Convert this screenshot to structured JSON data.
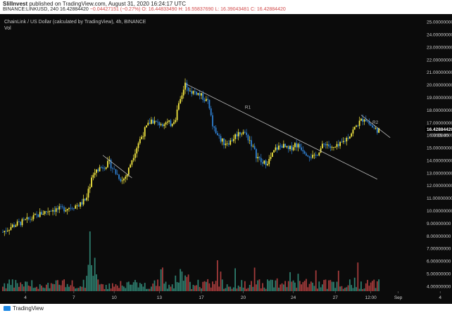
{
  "header": {
    "author": "SlilInvest",
    "published": " published on TradingView.com, August 31, 2020 16:24:17 UTC",
    "symbol_line": "BINANCE:LINKUSD, 240",
    "last": "16.42884420",
    "change": "−0.04427151 (−0.27%)",
    "open": "O: 16.44833490",
    "high": "H: 16.55837690",
    "low": "L: 16.39043481",
    "close": "C: 16.42884420"
  },
  "chart_data": {
    "type": "candlestick",
    "title": "ChainLink / US Dollar (calculated by TradingView), 4h, BINANCE",
    "subtitle": "Vol",
    "x_ticks": [
      "4",
      "7",
      "10",
      "13",
      "17",
      "20",
      "24",
      "27",
      "12:00",
      "Sep",
      "4"
    ],
    "y_ticks": [
      "4.00000000",
      "5.00000000",
      "6.00000000",
      "7.00000000",
      "8.00000000",
      "9.00000000",
      "10.00000000",
      "11.00000000",
      "12.00000000",
      "13.00000000",
      "14.00000000",
      "15.00000000",
      "16.00000000",
      "17.00000000",
      "18.00000000",
      "19.00000000",
      "20.00000000",
      "21.00000000",
      "22.00000000",
      "23.00000000",
      "24.00000000",
      "25.00000000"
    ],
    "ylim": [
      3.6,
      25.4
    ],
    "last_price_label": "16.42884420",
    "countdown_label": "03:35:45",
    "close_path": [
      {
        "t": 0,
        "v": 8.3
      },
      {
        "t": 6,
        "v": 8.8
      },
      {
        "t": 12,
        "v": 9.1
      },
      {
        "t": 18,
        "v": 9.4
      },
      {
        "t": 24,
        "v": 9.8
      },
      {
        "t": 30,
        "v": 10.1
      },
      {
        "t": 36,
        "v": 10.1
      },
      {
        "t": 42,
        "v": 10.3
      },
      {
        "t": 48,
        "v": 10.5
      },
      {
        "t": 52,
        "v": 11.0
      },
      {
        "t": 55,
        "v": 12.6
      },
      {
        "t": 58,
        "v": 13.3
      },
      {
        "t": 62,
        "v": 13.5
      },
      {
        "t": 66,
        "v": 13.8
      },
      {
        "t": 70,
        "v": 13.0
      },
      {
        "t": 74,
        "v": 12.4
      },
      {
        "t": 77,
        "v": 12.9
      },
      {
        "t": 80,
        "v": 14.1
      },
      {
        "t": 84,
        "v": 15.4
      },
      {
        "t": 88,
        "v": 16.4
      },
      {
        "t": 92,
        "v": 17.2
      },
      {
        "t": 96,
        "v": 16.9
      },
      {
        "t": 100,
        "v": 17.0
      },
      {
        "t": 104,
        "v": 16.9
      },
      {
        "t": 107,
        "v": 17.4
      },
      {
        "t": 110,
        "v": 18.8
      },
      {
        "t": 113,
        "v": 20.1
      },
      {
        "t": 116,
        "v": 19.5
      },
      {
        "t": 120,
        "v": 19.4
      },
      {
        "t": 124,
        "v": 19.0
      },
      {
        "t": 127,
        "v": 18.6
      },
      {
        "t": 130,
        "v": 16.8
      },
      {
        "t": 133,
        "v": 15.9
      },
      {
        "t": 137,
        "v": 15.4
      },
      {
        "t": 141,
        "v": 15.5
      },
      {
        "t": 145,
        "v": 16.1
      },
      {
        "t": 149,
        "v": 16.3
      },
      {
        "t": 153,
        "v": 15.6
      },
      {
        "t": 157,
        "v": 14.4
      },
      {
        "t": 161,
        "v": 13.7
      },
      {
        "t": 165,
        "v": 14.0
      },
      {
        "t": 169,
        "v": 14.9
      },
      {
        "t": 173,
        "v": 15.2
      },
      {
        "t": 177,
        "v": 14.8
      },
      {
        "t": 181,
        "v": 15.3
      },
      {
        "t": 185,
        "v": 15.0
      },
      {
        "t": 189,
        "v": 14.5
      },
      {
        "t": 193,
        "v": 14.2
      },
      {
        "t": 196,
        "v": 14.8
      },
      {
        "t": 200,
        "v": 15.4
      },
      {
        "t": 204,
        "v": 14.9
      },
      {
        "t": 208,
        "v": 15.1
      },
      {
        "t": 212,
        "v": 15.6
      },
      {
        "t": 216,
        "v": 16.2
      },
      {
        "t": 220,
        "v": 16.9
      },
      {
        "t": 224,
        "v": 17.4
      },
      {
        "t": 227,
        "v": 16.9
      },
      {
        "t": 230,
        "v": 16.5
      },
      {
        "t": 233,
        "v": 16.4
      }
    ],
    "trendlines": [
      {
        "label": "R1",
        "from": {
          "t": 113,
          "v": 20.1
        },
        "to": {
          "t": 232,
          "v": 12.5
        }
      },
      {
        "label": "R2",
        "from": {
          "t": 222,
          "v": 17.6
        },
        "to": {
          "t": 240,
          "v": 15.8
        }
      },
      {
        "label": "",
        "from": {
          "t": 62,
          "v": 14.4
        },
        "to": {
          "t": 80,
          "v": 12.6
        }
      }
    ]
  }
}
